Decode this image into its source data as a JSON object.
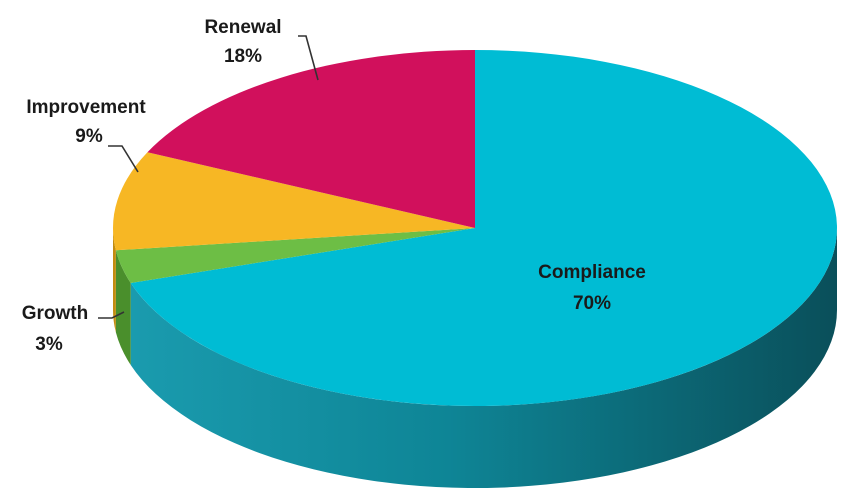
{
  "chart_data": {
    "type": "pie",
    "style": "3d",
    "slices": [
      {
        "name": "Compliance",
        "value": 70,
        "label": "70%",
        "color": "#00BCD4",
        "side_color": "#0E8FA3"
      },
      {
        "name": "Growth",
        "value": 3,
        "label": "3%",
        "color": "#6DBE45",
        "side_color": "#4A8F2C"
      },
      {
        "name": "Improvement",
        "value": 9,
        "label": "9%",
        "color": "#F7B724",
        "side_color": "#C28C10"
      },
      {
        "name": "Renewal",
        "value": 18,
        "label": "18%",
        "color": "#D1105C",
        "side_color": "#9E0A44"
      }
    ]
  }
}
